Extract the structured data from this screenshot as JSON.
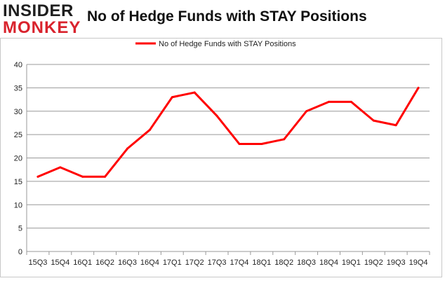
{
  "logo": {
    "line1": "INSIDER",
    "line2": "MONKEY"
  },
  "chart_data": {
    "type": "line",
    "title": "No of Hedge Funds with STAY Positions",
    "xlabel": "",
    "ylabel": "",
    "categories": [
      "15Q3",
      "15Q4",
      "16Q1",
      "16Q2",
      "16Q3",
      "16Q4",
      "17Q1",
      "17Q2",
      "17Q3",
      "17Q4",
      "18Q1",
      "18Q2",
      "18Q3",
      "18Q4",
      "19Q1",
      "19Q2",
      "19Q3",
      "19Q4"
    ],
    "series": [
      {
        "name": "No of Hedge Funds with STAY Positions",
        "color": "#ff0000",
        "values": [
          16,
          18,
          16,
          16,
          22,
          26,
          33,
          34,
          29,
          23,
          23,
          24,
          30,
          32,
          32,
          28,
          27,
          35
        ]
      }
    ],
    "ylim": [
      0,
      40
    ],
    "yticks": [
      0,
      5,
      10,
      15,
      20,
      25,
      30,
      35,
      40
    ],
    "grid": true,
    "legend_position": "top-center"
  }
}
